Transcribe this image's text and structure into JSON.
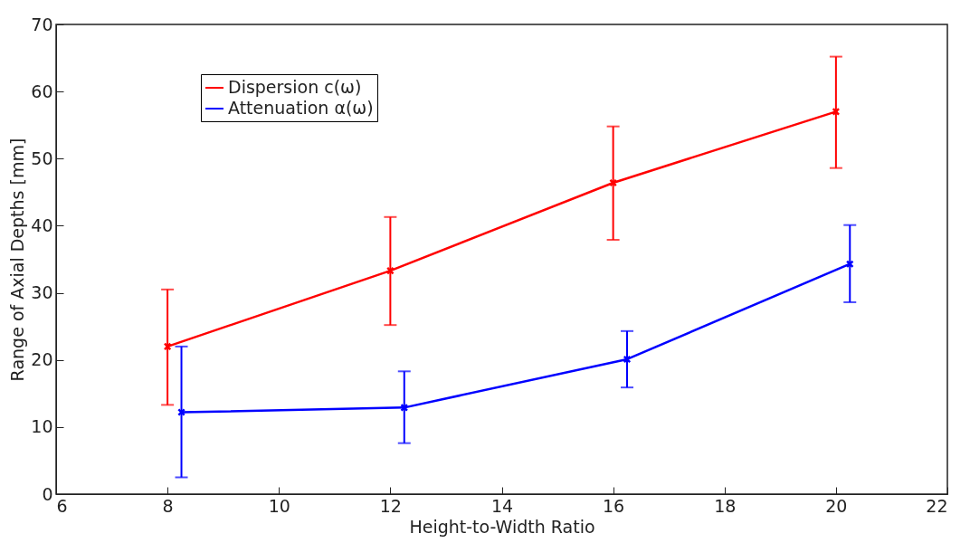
{
  "chart_data": {
    "type": "line",
    "xlabel": "Height-to-Width Ratio",
    "ylabel": "Range of Axial Depths [mm]",
    "xlim": [
      6,
      22
    ],
    "xticks": [
      6,
      8,
      10,
      12,
      14,
      16,
      18,
      20,
      22
    ],
    "ylim": [
      0,
      70
    ],
    "yticks": [
      0,
      10,
      20,
      30,
      40,
      50,
      60,
      70
    ],
    "grid": false,
    "legend": "top left",
    "marker": "cross",
    "line_style": "solid",
    "series": [
      {
        "name": "Dispersion c(ω)",
        "color": "#ff0000",
        "x": [
          8,
          12,
          16,
          20
        ],
        "values": [
          22,
          33.3,
          46.4,
          57
        ],
        "errors": [
          [
            13.3,
            30.5
          ],
          [
            25.2,
            41.3
          ],
          [
            37.9,
            54.8
          ],
          [
            48.6,
            65.2
          ]
        ]
      },
      {
        "name": "Attenuation α(ω)",
        "color": "#0000ff",
        "x": [
          8.25,
          12.25,
          16.25,
          20.25
        ],
        "values": [
          12.2,
          12.9,
          20.1,
          34.3
        ],
        "errors": [
          [
            2.5,
            22
          ],
          [
            7.6,
            18.3
          ],
          [
            15.9,
            24.3
          ],
          [
            28.6,
            40.1
          ]
        ]
      }
    ]
  }
}
